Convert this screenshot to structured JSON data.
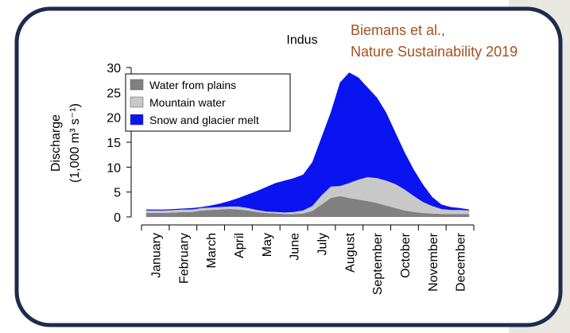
{
  "chart_data": {
    "type": "stacked-area",
    "title": "Indus",
    "annotation": [
      "Biemans et al.,",
      "Nature Sustainability 2019"
    ],
    "ylabel": [
      "Discharge",
      "(1,000 m³ s⁻¹)"
    ],
    "categories": [
      null,
      "January",
      null,
      null,
      "February",
      null,
      null,
      "March",
      null,
      null,
      "April",
      null,
      null,
      "May",
      null,
      null,
      "June",
      null,
      null,
      "July",
      null,
      null,
      "August",
      null,
      null,
      "September",
      null,
      null,
      "October",
      null,
      null,
      "November",
      null,
      null,
      "December",
      null
    ],
    "series": [
      {
        "name": "Water from plains",
        "color": "#808080",
        "values": [
          0.8,
          0.8,
          0.8,
          0.9,
          1.0,
          1.0,
          1.3,
          1.4,
          1.5,
          1.6,
          1.5,
          1.3,
          1.0,
          0.8,
          0.7,
          0.6,
          0.6,
          0.7,
          1.2,
          2.5,
          3.8,
          4.2,
          3.8,
          3.5,
          3.2,
          2.8,
          2.3,
          1.8,
          1.3,
          1.0,
          0.8,
          0.7,
          0.6,
          0.6,
          0.6,
          0.6
        ]
      },
      {
        "name": "Mountain water",
        "color": "#c8c8c8",
        "values": [
          0.5,
          0.5,
          0.5,
          0.5,
          0.5,
          0.5,
          0.5,
          0.5,
          0.5,
          0.5,
          0.6,
          0.5,
          0.4,
          0.3,
          0.3,
          0.3,
          0.4,
          0.6,
          1.0,
          1.8,
          2.3,
          2.0,
          3.0,
          4.0,
          4.8,
          5.0,
          5.0,
          4.8,
          4.2,
          3.2,
          2.2,
          1.5,
          1.0,
          0.8,
          0.8,
          0.7
        ]
      },
      {
        "name": "Snow and glacier melt",
        "color": "#0a14f0",
        "values": [
          0.2,
          0.2,
          0.2,
          0.2,
          0.2,
          0.3,
          0.2,
          0.4,
          0.7,
          1.1,
          1.7,
          2.7,
          3.8,
          4.9,
          5.8,
          6.4,
          6.8,
          7.2,
          8.8,
          11.7,
          14.9,
          20.8,
          22.2,
          20.5,
          18.0,
          16.2,
          13.7,
          10.4,
          7.5,
          5.3,
          3.5,
          1.8,
          0.9,
          0.6,
          0.4,
          0.2
        ]
      }
    ],
    "ylim": [
      0,
      30
    ],
    "yticks": [
      0,
      5,
      10,
      15,
      20,
      25,
      30
    ]
  }
}
